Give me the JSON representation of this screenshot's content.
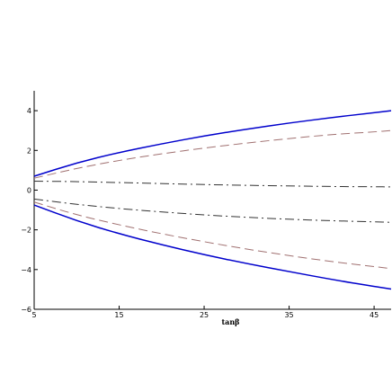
{
  "chart_data": {
    "type": "line",
    "xlabel": "tanβ",
    "ylabel": "",
    "xlim": [
      5,
      47
    ],
    "ylim": [
      -6,
      5
    ],
    "xticks": [
      "5",
      "15",
      "25",
      "35",
      "45"
    ],
    "yticks": [
      "−6",
      "−4",
      "−2",
      "0",
      "2",
      "4"
    ],
    "grid": false,
    "series": [
      {
        "color": "#0000cc",
        "dash": "solid",
        "x": [
          5,
          10,
          15,
          20,
          25,
          30,
          35,
          40,
          45,
          47
        ],
        "y": [
          0.7,
          1.38,
          1.9,
          2.33,
          2.73,
          3.07,
          3.38,
          3.65,
          3.9,
          4.0
        ]
      },
      {
        "color": "#a07070",
        "dash": "dashed",
        "x": [
          5,
          10,
          15,
          20,
          25,
          30,
          35,
          40,
          45,
          47
        ],
        "y": [
          0.6,
          1.1,
          1.5,
          1.83,
          2.12,
          2.37,
          2.6,
          2.8,
          2.93,
          3.0
        ]
      },
      {
        "color": "#333333",
        "dash": "dashdot",
        "x": [
          5,
          10,
          15,
          20,
          25,
          30,
          35,
          40,
          45,
          47
        ],
        "y": [
          0.45,
          0.43,
          0.38,
          0.33,
          0.28,
          0.24,
          0.21,
          0.18,
          0.17,
          0.16
        ]
      },
      {
        "color": "#333333",
        "dash": "dashdot",
        "x": [
          5,
          10,
          15,
          20,
          25,
          30,
          35,
          40,
          45,
          47
        ],
        "y": [
          -0.45,
          -0.72,
          -0.93,
          -1.1,
          -1.25,
          -1.37,
          -1.47,
          -1.54,
          -1.6,
          -1.62
        ]
      },
      {
        "color": "#a07070",
        "dash": "dashed",
        "x": [
          5,
          10,
          15,
          20,
          25,
          30,
          35,
          40,
          45,
          47
        ],
        "y": [
          -0.6,
          -1.25,
          -1.75,
          -2.2,
          -2.6,
          -2.97,
          -3.3,
          -3.6,
          -3.85,
          -3.95
        ]
      },
      {
        "color": "#0000cc",
        "dash": "solid",
        "x": [
          5,
          10,
          15,
          20,
          25,
          30,
          35,
          40,
          45,
          47
        ],
        "y": [
          -0.75,
          -1.55,
          -2.2,
          -2.75,
          -3.25,
          -3.7,
          -4.1,
          -4.5,
          -4.85,
          -4.98
        ]
      }
    ]
  }
}
